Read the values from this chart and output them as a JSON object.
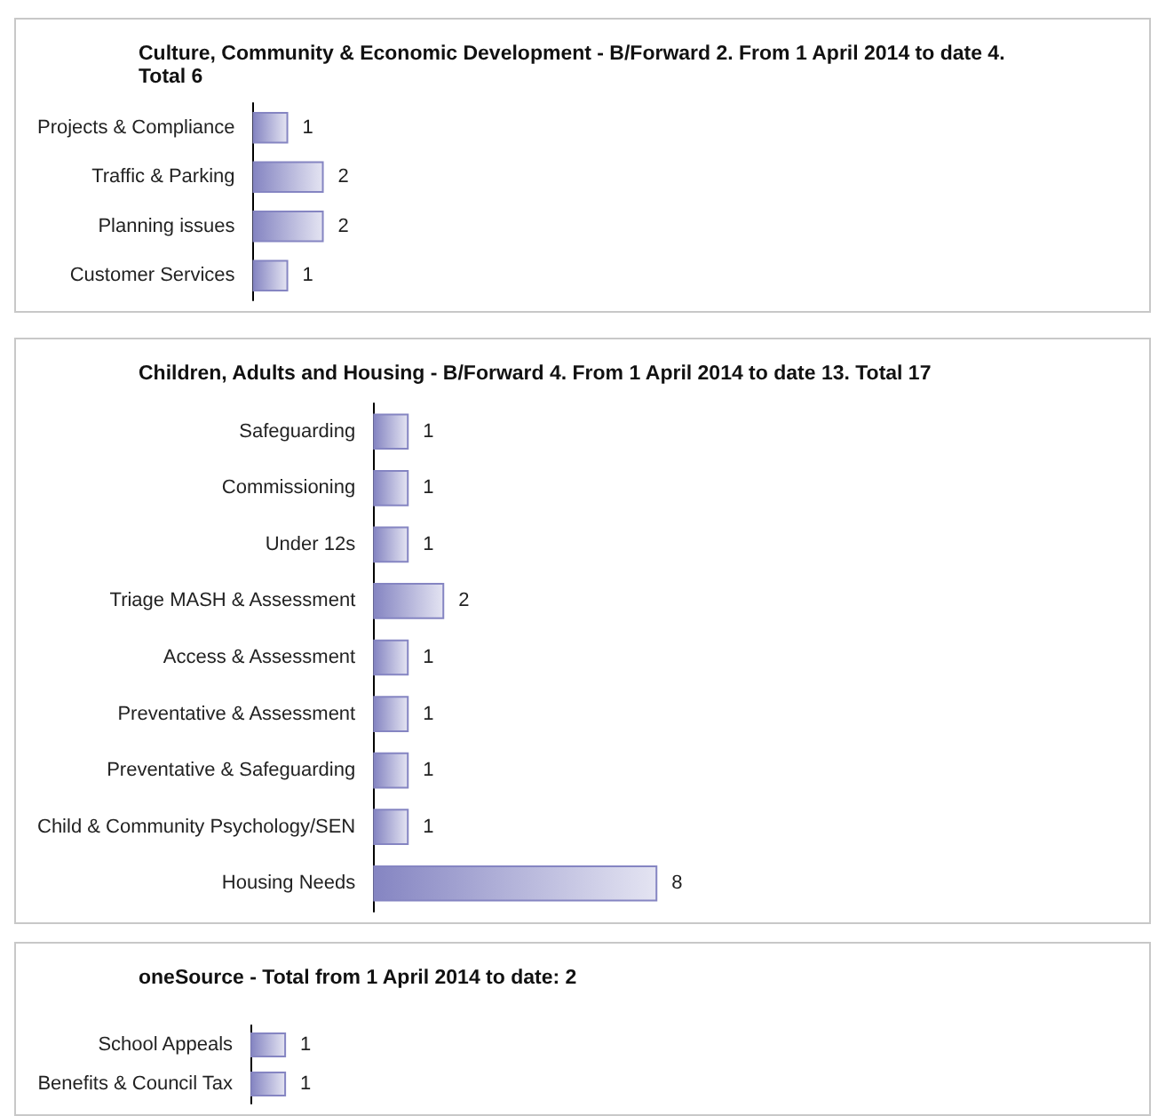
{
  "chart_data": [
    {
      "type": "bar",
      "orientation": "horizontal",
      "title": "Culture, Community & Economic Development - B/Forward 2. From 1 April 2014 to date 4. Total 6",
      "categories": [
        "Projects & Compliance",
        "Traffic & Parking",
        "Planning issues",
        "Customer Services"
      ],
      "values": [
        1,
        2,
        2,
        1
      ],
      "color": "#8585c2",
      "data_labels": true
    },
    {
      "type": "bar",
      "orientation": "horizontal",
      "title": "Children, Adults and Housing - B/Forward 4. From 1 April 2014 to date 13. Total 17",
      "categories": [
        "Safeguarding",
        "Commissioning",
        "Under 12s",
        "Triage MASH & Assessment",
        "Access & Assessment",
        "Preventative & Assessment",
        "Preventative & Safeguarding",
        "Child & Community Psychology/SEN",
        "Housing Needs"
      ],
      "values": [
        1,
        1,
        1,
        2,
        1,
        1,
        1,
        1,
        8
      ],
      "color": "#8585c2",
      "data_labels": true
    },
    {
      "type": "bar",
      "orientation": "horizontal",
      "title": "oneSource - Total from 1 April 2014 to date: 2",
      "categories": [
        "School Appeals",
        "Benefits & Council Tax"
      ],
      "values": [
        1,
        1
      ],
      "color": "#8585c2",
      "data_labels": true
    }
  ]
}
